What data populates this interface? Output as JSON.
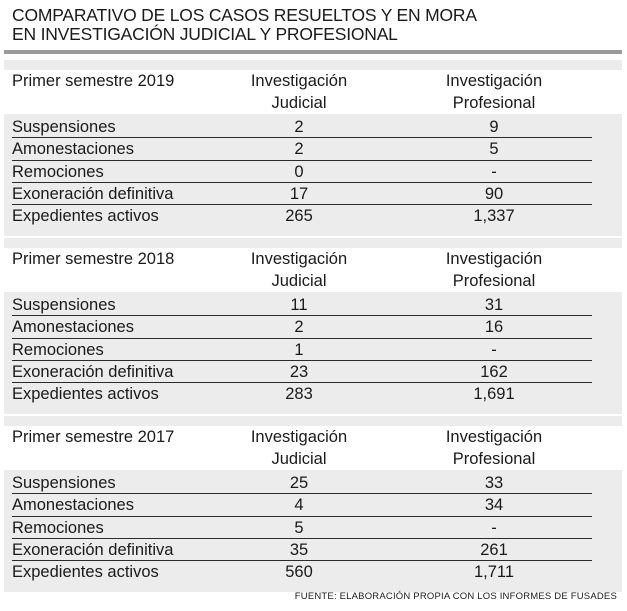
{
  "title_line1": "COMPARATIVO DE LOS CASOS RESUELTOS Y EN MORA",
  "title_line2": "EN INVESTIGACIÓN JUDICIAL Y PROFESIONAL",
  "col_judicial_1": "Investigación",
  "col_judicial_2": "Judicial",
  "col_profesional_1": "Investigación",
  "col_profesional_2": "Profesional",
  "sections": [
    {
      "period": "Primer semestre 2019",
      "rows": [
        {
          "label": "Suspensiones",
          "judicial": "2",
          "profesional": "9"
        },
        {
          "label": "Amonestaciones",
          "judicial": "2",
          "profesional": "5"
        },
        {
          "label": "Remociones",
          "judicial": "0",
          "profesional": "-"
        },
        {
          "label": "Exoneración definitiva",
          "judicial": "17",
          "profesional": "90"
        },
        {
          "label": "Expedientes activos",
          "judicial": "265",
          "profesional": "1,337"
        }
      ]
    },
    {
      "period": "Primer semestre 2018",
      "rows": [
        {
          "label": "Suspensiones",
          "judicial": "11",
          "profesional": "31"
        },
        {
          "label": "Amonestaciones",
          "judicial": "2",
          "profesional": "16"
        },
        {
          "label": "Remociones",
          "judicial": "1",
          "profesional": "-"
        },
        {
          "label": "Exoneración definitiva",
          "judicial": "23",
          "profesional": "162"
        },
        {
          "label": "Expedientes activos",
          "judicial": "283",
          "profesional": "1,691"
        }
      ]
    },
    {
      "period": "Primer semestre 2017",
      "rows": [
        {
          "label": "Suspensiones",
          "judicial": "25",
          "profesional": "33"
        },
        {
          "label": "Amonestaciones",
          "judicial": "4",
          "profesional": "34"
        },
        {
          "label": "Remociones",
          "judicial": "5",
          "profesional": "-"
        },
        {
          "label": "Exoneración definitiva",
          "judicial": "35",
          "profesional": "261"
        },
        {
          "label": "Expedientes activos",
          "judicial": "560",
          "profesional": "1,711"
        }
      ]
    }
  ],
  "footer": "FUENTE: ELABORACIÓN PROPIA CON LOS INFORMES DE FUSADES"
}
